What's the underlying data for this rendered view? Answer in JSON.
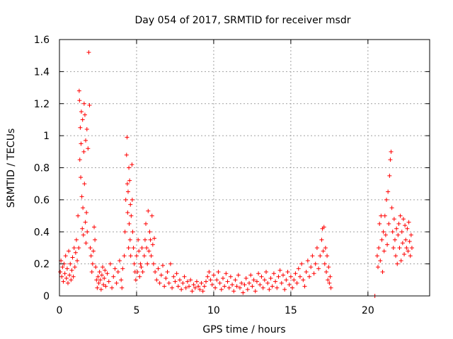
{
  "chart_data": {
    "type": "scatter",
    "title": "Day 054 of 2017, SRMTID for receiver msdr",
    "xlabel": "GPS time / hours",
    "ylabel": "SRMTID / TECUs",
    "xlim": [
      0,
      24
    ],
    "ylim": [
      0,
      1.6
    ],
    "xticks": [
      0,
      5,
      10,
      15,
      20
    ],
    "yticks": [
      0,
      0.2,
      0.4,
      0.6,
      0.8,
      1.0,
      1.2,
      1.4,
      1.6
    ],
    "xtick_labels": [
      "0",
      "5",
      "10",
      "15",
      "20"
    ],
    "ytick_labels": [
      "0",
      "0.2",
      "0.4",
      "0.6",
      "0.8",
      "1",
      "1.2",
      "1.4",
      "1.6"
    ],
    "grid": true,
    "marker": "+",
    "series": [
      {
        "name": "SRMTID",
        "color": "#ff0000",
        "points": [
          [
            0.05,
            0.15
          ],
          [
            0.1,
            0.22
          ],
          [
            0.15,
            0.12
          ],
          [
            0.2,
            0.18
          ],
          [
            0.25,
            0.09
          ],
          [
            0.3,
            0.2
          ],
          [
            0.35,
            0.14
          ],
          [
            0.4,
            0.25
          ],
          [
            0.45,
            0.11
          ],
          [
            0.5,
            0.17
          ],
          [
            0.55,
            0.08
          ],
          [
            0.6,
            0.28
          ],
          [
            0.65,
            0.13
          ],
          [
            0.7,
            0.2
          ],
          [
            0.75,
            0.1
          ],
          [
            0.8,
            0.16
          ],
          [
            0.85,
            0.24
          ],
          [
            0.9,
            0.12
          ],
          [
            0.95,
            0.3
          ],
          [
            1.0,
            0.18
          ],
          [
            1.05,
            0.27
          ],
          [
            1.1,
            0.35
          ],
          [
            1.15,
            0.22
          ],
          [
            1.2,
            0.5
          ],
          [
            1.25,
            0.3
          ],
          [
            1.28,
            1.28
          ],
          [
            1.3,
            1.22
          ],
          [
            1.32,
            0.85
          ],
          [
            1.35,
            1.05
          ],
          [
            1.38,
            0.74
          ],
          [
            1.4,
            0.95
          ],
          [
            1.42,
            1.15
          ],
          [
            1.45,
            0.62
          ],
          [
            1.48,
            0.42
          ],
          [
            1.5,
            1.1
          ],
          [
            1.52,
            0.55
          ],
          [
            1.55,
            0.38
          ],
          [
            1.58,
            0.9
          ],
          [
            1.6,
            1.2
          ],
          [
            1.62,
            0.7
          ],
          [
            1.65,
            1.13
          ],
          [
            1.68,
            0.46
          ],
          [
            1.7,
            0.97
          ],
          [
            1.72,
            0.33
          ],
          [
            1.75,
            0.52
          ],
          [
            1.78,
            1.04
          ],
          [
            1.8,
            0.4
          ],
          [
            1.85,
            0.92
          ],
          [
            1.9,
            1.52
          ],
          [
            1.95,
            1.19
          ],
          [
            2.0,
            0.3
          ],
          [
            2.05,
            0.25
          ],
          [
            2.1,
            0.15
          ],
          [
            2.15,
            0.2
          ],
          [
            2.2,
            0.28
          ],
          [
            2.25,
            0.43
          ],
          [
            2.3,
            0.35
          ],
          [
            2.35,
            0.18
          ],
          [
            2.4,
            0.1
          ],
          [
            2.45,
            0.05
          ],
          [
            2.5,
            0.12
          ],
          [
            2.55,
            0.08
          ],
          [
            2.6,
            0.15
          ],
          [
            2.65,
            0.1
          ],
          [
            2.7,
            0.04
          ],
          [
            2.75,
            0.13
          ],
          [
            2.8,
            0.18
          ],
          [
            2.85,
            0.07
          ],
          [
            2.9,
            0.11
          ],
          [
            2.95,
            0.16
          ],
          [
            3.0,
            0.06
          ],
          [
            3.1,
            0.14
          ],
          [
            3.2,
            0.09
          ],
          [
            3.3,
            0.2
          ],
          [
            3.4,
            0.05
          ],
          [
            3.5,
            0.12
          ],
          [
            3.6,
            0.17
          ],
          [
            3.7,
            0.08
          ],
          [
            3.8,
            0.15
          ],
          [
            3.9,
            0.22
          ],
          [
            4.0,
            0.1
          ],
          [
            4.05,
            0.05
          ],
          [
            4.1,
            0.17
          ],
          [
            4.2,
            0.25
          ],
          [
            4.25,
            0.4
          ],
          [
            4.3,
            0.6
          ],
          [
            4.35,
            0.88
          ],
          [
            4.38,
            0.99
          ],
          [
            4.4,
            0.7
          ],
          [
            4.42,
            0.52
          ],
          [
            4.45,
            0.65
          ],
          [
            4.48,
            0.3
          ],
          [
            4.5,
            0.8
          ],
          [
            4.52,
            0.45
          ],
          [
            4.55,
            0.72
          ],
          [
            4.58,
            0.35
          ],
          [
            4.6,
            0.57
          ],
          [
            4.62,
            0.25
          ],
          [
            4.65,
            0.5
          ],
          [
            4.7,
            0.82
          ],
          [
            4.72,
            0.6
          ],
          [
            4.75,
            0.4
          ],
          [
            4.8,
            0.3
          ],
          [
            4.85,
            0.2
          ],
          [
            4.9,
            0.15
          ],
          [
            4.95,
            0.1
          ],
          [
            5.0,
            0.25
          ],
          [
            5.05,
            0.15
          ],
          [
            5.1,
            0.35
          ],
          [
            5.15,
            0.28
          ],
          [
            5.2,
            0.12
          ],
          [
            5.25,
            0.2
          ],
          [
            5.3,
            0.18
          ],
          [
            5.35,
            0.3
          ],
          [
            5.4,
            0.15
          ],
          [
            5.5,
            0.25
          ],
          [
            5.55,
            0.35
          ],
          [
            5.6,
            0.45
          ],
          [
            5.65,
            0.3
          ],
          [
            5.7,
            0.2
          ],
          [
            5.75,
            0.53
          ],
          [
            5.8,
            0.28
          ],
          [
            5.85,
            0.4
          ],
          [
            5.9,
            0.35
          ],
          [
            5.95,
            0.25
          ],
          [
            6.0,
            0.5
          ],
          [
            6.05,
            0.32
          ],
          [
            6.1,
            0.2
          ],
          [
            6.15,
            0.36
          ],
          [
            6.2,
            0.15
          ],
          [
            6.3,
            0.1
          ],
          [
            6.4,
            0.17
          ],
          [
            6.5,
            0.08
          ],
          [
            6.6,
            0.13
          ],
          [
            6.7,
            0.19
          ],
          [
            6.8,
            0.06
          ],
          [
            6.9,
            0.11
          ],
          [
            7.0,
            0.15
          ],
          [
            7.1,
            0.08
          ],
          [
            7.2,
            0.2
          ],
          [
            7.3,
            0.05
          ],
          [
            7.4,
            0.12
          ],
          [
            7.5,
            0.09
          ],
          [
            7.6,
            0.14
          ],
          [
            7.7,
            0.06
          ],
          [
            7.8,
            0.1
          ],
          [
            7.9,
            0.04
          ],
          [
            8.0,
            0.08
          ],
          [
            8.1,
            0.12
          ],
          [
            8.2,
            0.05
          ],
          [
            8.3,
            0.09
          ],
          [
            8.4,
            0.06
          ],
          [
            8.5,
            0.1
          ],
          [
            8.6,
            0.03
          ],
          [
            8.7,
            0.07
          ],
          [
            8.8,
            0.05
          ],
          [
            8.9,
            0.09
          ],
          [
            9.0,
            0.06
          ],
          [
            9.1,
            0.04
          ],
          [
            9.2,
            0.08
          ],
          [
            9.3,
            0.03
          ],
          [
            9.4,
            0.06
          ],
          [
            9.5,
            0.09
          ],
          [
            9.6,
            0.12
          ],
          [
            9.7,
            0.15
          ],
          [
            9.8,
            0.1
          ],
          [
            9.9,
            0.07
          ],
          [
            10.0,
            0.13
          ],
          [
            10.1,
            0.05
          ],
          [
            10.2,
            0.1
          ],
          [
            10.3,
            0.15
          ],
          [
            10.4,
            0.08
          ],
          [
            10.5,
            0.04
          ],
          [
            10.6,
            0.11
          ],
          [
            10.7,
            0.06
          ],
          [
            10.8,
            0.14
          ],
          [
            10.9,
            0.09
          ],
          [
            11.0,
            0.05
          ],
          [
            11.1,
            0.12
          ],
          [
            11.2,
            0.07
          ],
          [
            11.3,
            0.03
          ],
          [
            11.4,
            0.1
          ],
          [
            11.5,
            0.06
          ],
          [
            11.6,
            0.13
          ],
          [
            11.7,
            0.05
          ],
          [
            11.8,
            0.08
          ],
          [
            11.9,
            0.02
          ],
          [
            12.0,
            0.07
          ],
          [
            12.1,
            0.11
          ],
          [
            12.2,
            0.04
          ],
          [
            12.3,
            0.08
          ],
          [
            12.4,
            0.13
          ],
          [
            12.5,
            0.06
          ],
          [
            12.6,
            0.1
          ],
          [
            12.7,
            0.03
          ],
          [
            12.8,
            0.09
          ],
          [
            12.9,
            0.14
          ],
          [
            13.0,
            0.07
          ],
          [
            13.1,
            0.12
          ],
          [
            13.2,
            0.05
          ],
          [
            13.3,
            0.1
          ],
          [
            13.4,
            0.15
          ],
          [
            13.5,
            0.08
          ],
          [
            13.6,
            0.04
          ],
          [
            13.7,
            0.11
          ],
          [
            13.8,
            0.06
          ],
          [
            13.9,
            0.14
          ],
          [
            14.0,
            0.09
          ],
          [
            14.1,
            0.05
          ],
          [
            14.2,
            0.12
          ],
          [
            14.3,
            0.16
          ],
          [
            14.4,
            0.08
          ],
          [
            14.5,
            0.13
          ],
          [
            14.6,
            0.04
          ],
          [
            14.7,
            0.1
          ],
          [
            14.8,
            0.15
          ],
          [
            14.9,
            0.07
          ],
          [
            15.0,
            0.12
          ],
          [
            15.1,
            0.05
          ],
          [
            15.2,
            0.1
          ],
          [
            15.3,
            0.14
          ],
          [
            15.4,
            0.08
          ],
          [
            15.5,
            0.17
          ],
          [
            15.6,
            0.12
          ],
          [
            15.7,
            0.2
          ],
          [
            15.8,
            0.1
          ],
          [
            15.9,
            0.06
          ],
          [
            16.0,
            0.15
          ],
          [
            16.1,
            0.22
          ],
          [
            16.2,
            0.12
          ],
          [
            16.3,
            0.18
          ],
          [
            16.4,
            0.25
          ],
          [
            16.5,
            0.14
          ],
          [
            16.6,
            0.2
          ],
          [
            16.7,
            0.3
          ],
          [
            16.8,
            0.17
          ],
          [
            16.9,
            0.25
          ],
          [
            17.0,
            0.35
          ],
          [
            17.05,
            0.42
          ],
          [
            17.1,
            0.28
          ],
          [
            17.15,
            0.43
          ],
          [
            17.2,
            0.2
          ],
          [
            17.25,
            0.3
          ],
          [
            17.3,
            0.15
          ],
          [
            17.35,
            0.25
          ],
          [
            17.4,
            0.1
          ],
          [
            17.45,
            0.18
          ],
          [
            17.5,
            0.08
          ],
          [
            17.55,
            0.12
          ],
          [
            17.6,
            0.05
          ],
          [
            20.45,
            0.0
          ],
          [
            20.6,
            0.25
          ],
          [
            20.65,
            0.18
          ],
          [
            20.7,
            0.3
          ],
          [
            20.75,
            0.45
          ],
          [
            20.8,
            0.22
          ],
          [
            20.85,
            0.5
          ],
          [
            20.9,
            0.35
          ],
          [
            20.95,
            0.15
          ],
          [
            21.0,
            0.4
          ],
          [
            21.05,
            0.28
          ],
          [
            21.1,
            0.5
          ],
          [
            21.15,
            0.38
          ],
          [
            21.2,
            0.6
          ],
          [
            21.25,
            0.32
          ],
          [
            21.3,
            0.65
          ],
          [
            21.35,
            0.45
          ],
          [
            21.4,
            0.75
          ],
          [
            21.45,
            0.85
          ],
          [
            21.5,
            0.9
          ],
          [
            21.55,
            0.55
          ],
          [
            21.6,
            0.4
          ],
          [
            21.65,
            0.3
          ],
          [
            21.7,
            0.48
          ],
          [
            21.75,
            0.35
          ],
          [
            21.8,
            0.25
          ],
          [
            21.85,
            0.42
          ],
          [
            21.9,
            0.2
          ],
          [
            21.95,
            0.38
          ],
          [
            22.0,
            0.45
          ],
          [
            22.05,
            0.3
          ],
          [
            22.1,
            0.5
          ],
          [
            22.15,
            0.22
          ],
          [
            22.2,
            0.4
          ],
          [
            22.25,
            0.33
          ],
          [
            22.3,
            0.48
          ],
          [
            22.35,
            0.26
          ],
          [
            22.4,
            0.44
          ],
          [
            22.45,
            0.35
          ],
          [
            22.5,
            0.3
          ],
          [
            22.55,
            0.42
          ],
          [
            22.6,
            0.28
          ],
          [
            22.65,
            0.46
          ],
          [
            22.7,
            0.34
          ],
          [
            22.75,
            0.25
          ],
          [
            22.8,
            0.38
          ],
          [
            22.85,
            0.3
          ]
        ]
      }
    ]
  }
}
